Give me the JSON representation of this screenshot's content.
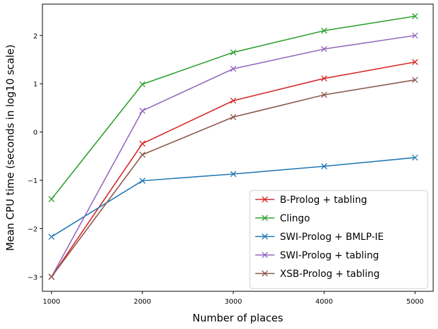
{
  "chart_data": {
    "type": "line",
    "title": "",
    "xlabel": "Number of places",
    "ylabel": "Mean CPU time (seconds in log10 scale)",
    "x": [
      1000,
      2000,
      3000,
      4000,
      5000
    ],
    "xlim": [
      900,
      5200
    ],
    "ylim": [
      -3.3,
      2.65
    ],
    "xticks": [
      1000,
      2000,
      3000,
      4000,
      5000
    ],
    "yticks": [
      -3,
      -2,
      -1,
      0,
      1,
      2
    ],
    "xtick_labels": [
      "1000",
      "2000",
      "3000",
      "4000",
      "5000"
    ],
    "ytick_labels": [
      "−3",
      "−2",
      "−1",
      "0",
      "1",
      "2"
    ],
    "grid": false,
    "legend_position": "lower-right",
    "marker": "x",
    "series": [
      {
        "name": "B-Prolog + tabling",
        "color": "#d62728",
        "values": [
          -3.0,
          -0.24,
          0.65,
          1.11,
          1.45
        ]
      },
      {
        "name": "Clingo",
        "color": "#2ca02c",
        "values": [
          -1.39,
          0.99,
          1.65,
          2.1,
          2.4
        ]
      },
      {
        "name": "SWI-Prolog + BMLP-IE",
        "color": "#1f77b4",
        "values": [
          -2.17,
          -1.01,
          -0.87,
          -0.71,
          -0.53
        ]
      },
      {
        "name": "SWI-Prolog + tabling",
        "color": "#9467bd",
        "values": [
          -3.0,
          0.44,
          1.31,
          1.72,
          2.0
        ]
      },
      {
        "name": "XSB-Prolog + tabling",
        "color": "#8c564b",
        "values": [
          -3.0,
          -0.47,
          0.31,
          0.77,
          1.08
        ]
      }
    ]
  }
}
